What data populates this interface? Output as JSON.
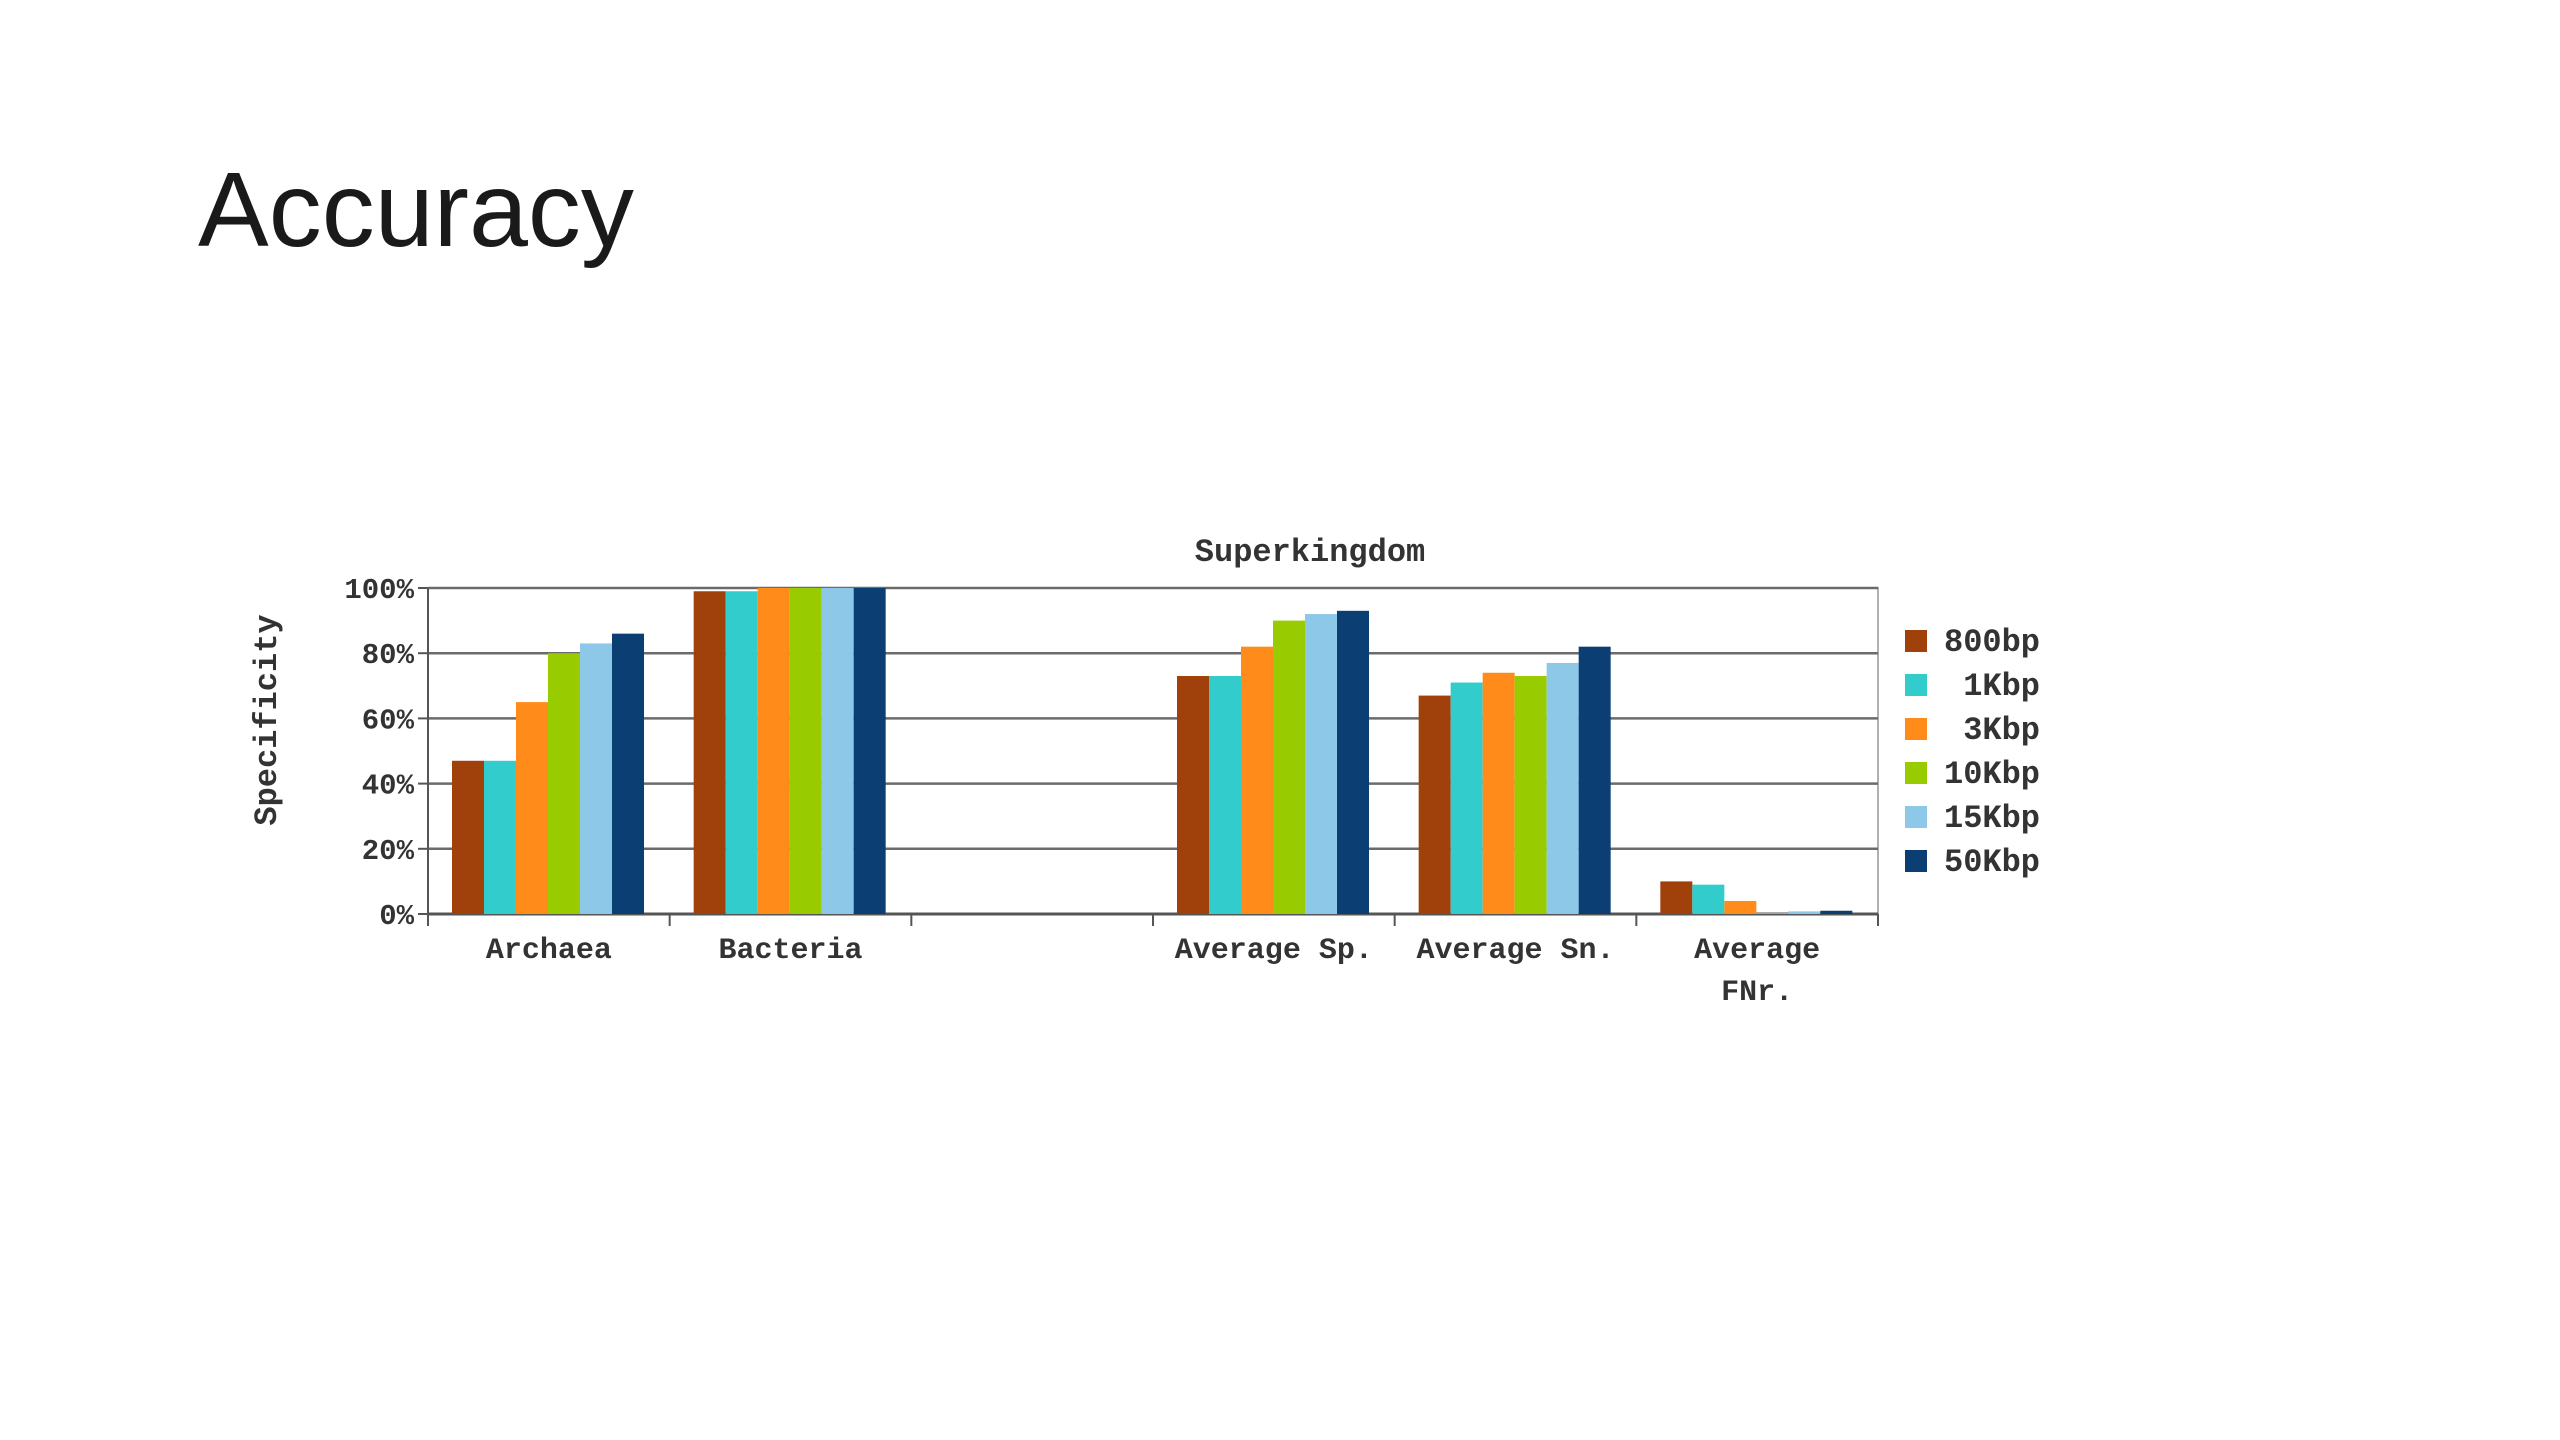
{
  "slide": {
    "title": "Accuracy"
  },
  "chart_data": {
    "type": "bar",
    "title": "Superkingdom",
    "xlabel": "",
    "ylabel": "Specificity",
    "ylim": [
      0,
      100
    ],
    "yticks": [
      "0%",
      "20%",
      "40%",
      "60%",
      "80%",
      "100%"
    ],
    "grid": true,
    "legend_position": "right",
    "categories": [
      [
        "Archaea"
      ],
      [
        "Bacteria"
      ],
      [
        ""
      ],
      [
        "Average Sp."
      ],
      [
        "Average Sn."
      ],
      [
        "Average",
        "FNr."
      ]
    ],
    "series": [
      {
        "name": "800bp",
        "color": "#a0400a",
        "values": [
          47,
          99,
          null,
          73,
          67,
          10
        ]
      },
      {
        "name": "1Kbp",
        "color": "#33cccc",
        "values": [
          47,
          99,
          null,
          73,
          71,
          9
        ]
      },
      {
        "name": "3Kbp",
        "color": "#ff8c1a",
        "values": [
          65,
          100,
          null,
          82,
          74,
          4
        ]
      },
      {
        "name": "10Kbp",
        "color": "#99cc00",
        "values": [
          80,
          100,
          null,
          90,
          73,
          0.3
        ]
      },
      {
        "name": "15Kbp",
        "color": "#8ec8e8",
        "values": [
          83,
          100,
          null,
          92,
          77,
          0.8
        ]
      },
      {
        "name": "50Kbp",
        "color": "#0b3e73",
        "values": [
          86,
          100,
          null,
          93,
          82,
          1
        ]
      }
    ]
  }
}
